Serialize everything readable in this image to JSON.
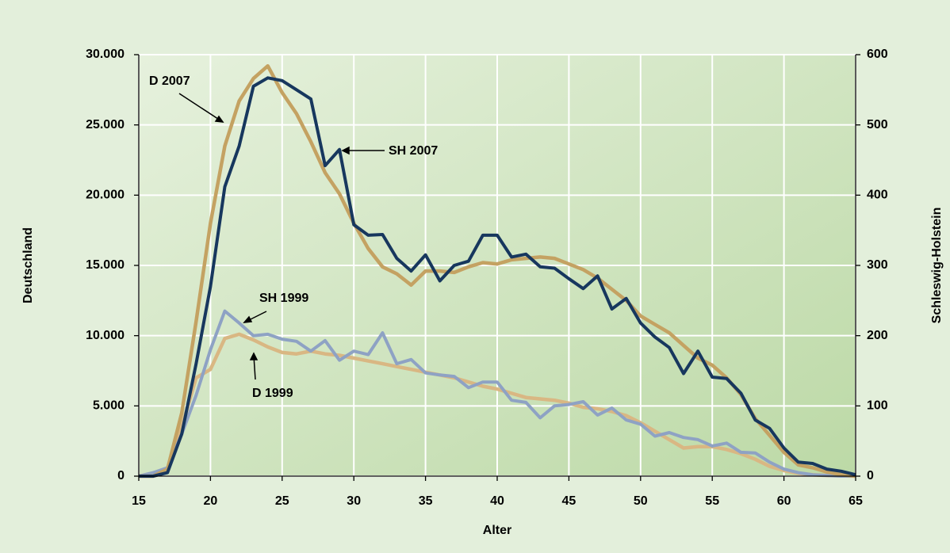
{
  "chart_data": {
    "type": "line",
    "x_label": "Alter",
    "y_label": "Deutschland",
    "y2_label": "Schleswig-Holstein",
    "x": [
      15,
      16,
      17,
      18,
      19,
      20,
      21,
      22,
      23,
      24,
      25,
      26,
      27,
      28,
      29,
      30,
      31,
      32,
      33,
      34,
      35,
      36,
      37,
      38,
      39,
      40,
      41,
      42,
      43,
      44,
      45,
      46,
      47,
      48,
      49,
      50,
      51,
      52,
      53,
      54,
      55,
      56,
      57,
      58,
      59,
      60,
      61,
      62,
      63,
      64,
      65
    ],
    "xlim": [
      15,
      65
    ],
    "xticks": [
      15,
      20,
      25,
      30,
      35,
      40,
      45,
      50,
      55,
      60,
      65
    ],
    "ylim": [
      0,
      30000
    ],
    "yticks": [
      {
        "value": 0,
        "label": "0"
      },
      {
        "value": 5000,
        "label": "5.000"
      },
      {
        "value": 10000,
        "label": "10.000"
      },
      {
        "value": 15000,
        "label": "15.000"
      },
      {
        "value": 20000,
        "label": "20.000"
      },
      {
        "value": 25000,
        "label": "25.000"
      },
      {
        "value": 30000,
        "label": "30.000"
      }
    ],
    "y2lim": [
      0,
      600
    ],
    "y2ticks": [
      0,
      100,
      200,
      300,
      400,
      500,
      600
    ],
    "grid": true,
    "series": [
      {
        "name": "D 2007",
        "color": "#c4a262",
        "axis": "y",
        "values": [
          0,
          0,
          500,
          4500,
          11000,
          18000,
          23500,
          26700,
          28300,
          29200,
          27300,
          25800,
          23800,
          21600,
          20100,
          18000,
          16200,
          14900,
          14400,
          13600,
          14600,
          14600,
          14500,
          14900,
          15200,
          15100,
          15400,
          15500,
          15600,
          15500,
          15100,
          14700,
          14100,
          13300,
          12500,
          11400,
          10800,
          10200,
          9300,
          8400,
          7900,
          7000,
          5800,
          4100,
          2900,
          1700,
          800,
          600,
          300,
          100,
          0
        ]
      },
      {
        "name": "SH 2007",
        "color": "#17375e",
        "axis": "y2",
        "values": [
          0,
          0,
          5,
          60,
          160,
          270,
          412,
          470,
          555,
          567,
          563,
          550,
          537,
          442,
          465,
          358,
          343,
          344,
          310,
          292,
          315,
          278,
          300,
          306,
          343,
          343,
          312,
          316,
          298,
          296,
          281,
          267,
          285,
          238,
          253,
          218,
          198,
          183,
          146,
          178,
          141,
          139,
          118,
          80,
          68,
          40,
          20,
          18,
          10,
          7,
          2
        ]
      },
      {
        "name": "D 1999",
        "color": "#d9b783",
        "axis": "y",
        "values": [
          0,
          0,
          300,
          3500,
          7000,
          7600,
          9800,
          10100,
          9700,
          9200,
          8800,
          8700,
          8900,
          8700,
          8600,
          8400,
          8200,
          8000,
          7800,
          7600,
          7400,
          7200,
          7000,
          6700,
          6400,
          6200,
          5900,
          5600,
          5500,
          5400,
          5200,
          4900,
          4800,
          4600,
          4300,
          3800,
          3200,
          2600,
          2000,
          2100,
          2100,
          1900,
          1600,
          1200,
          700,
          400,
          200,
          100,
          50,
          20,
          0
        ]
      },
      {
        "name": "SH 1999",
        "color": "#8ea2c4",
        "axis": "y2",
        "values": [
          0,
          5,
          12,
          60,
          115,
          180,
          235,
          218,
          200,
          202,
          195,
          192,
          178,
          193,
          165,
          178,
          173,
          204,
          160,
          166,
          147,
          144,
          142,
          126,
          134,
          134,
          108,
          105,
          83,
          100,
          102,
          106,
          87,
          97,
          80,
          74,
          57,
          62,
          55,
          52,
          43,
          47,
          34,
          33,
          20,
          10,
          5,
          2,
          1,
          0,
          0
        ]
      }
    ]
  }
}
